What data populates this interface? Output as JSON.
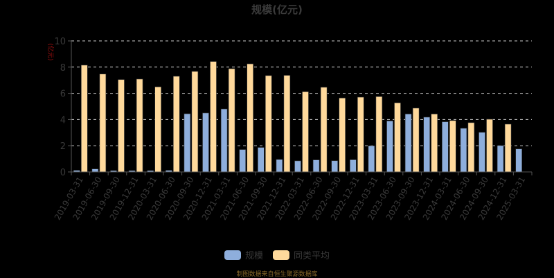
{
  "title": "规模(亿元)",
  "y_unit_label": "(亿元)",
  "source_note": "制图数据来自恒生聚源数据库",
  "colors": {
    "background": "#000000",
    "series_scale": "#8eaedc",
    "series_avg": "#ffd99b",
    "grid": "#cccccc",
    "axis": "#555555",
    "tick_text": "#3a3a3a",
    "unit_label": "#a01010"
  },
  "legend": [
    {
      "name": "规模",
      "color": "#8eaedc"
    },
    {
      "name": "同类平均",
      "color": "#ffd99b"
    }
  ],
  "chart_data": {
    "type": "bar",
    "title": "规模(亿元)",
    "xlabel": "",
    "ylabel": "(亿元)",
    "ylim": [
      0,
      10
    ],
    "yticks": [
      0,
      2,
      4,
      6,
      8,
      10
    ],
    "grid": true,
    "legend_position": "bottom",
    "categories": [
      "2019-03-31",
      "2019-06-30",
      "2019-09-30",
      "2019-12-31",
      "2020-03-31",
      "2020-06-30",
      "2020-09-30",
      "2020-12-31",
      "2021-03-31",
      "2021-06-30",
      "2021-09-30",
      "2021-12-31",
      "2022-03-31",
      "2022-06-30",
      "2022-09-30",
      "2022-12-31",
      "2023-03-31",
      "2023-06-30",
      "2023-09-30",
      "2023-12-31",
      "2024-03-31",
      "2024-06-30",
      "2024-09-30",
      "2024-12-31",
      "2025-03-31"
    ],
    "series": [
      {
        "name": "规模",
        "values": [
          0.12,
          0.23,
          0.1,
          0.1,
          0.1,
          0.12,
          4.44,
          4.5,
          4.81,
          1.71,
          1.87,
          0.95,
          0.85,
          0.92,
          0.86,
          0.93,
          1.99,
          3.89,
          4.42,
          4.18,
          3.83,
          3.33,
          3.02,
          2.01,
          1.76
        ]
      },
      {
        "name": "同类平均",
        "values": [
          8.15,
          7.47,
          7.05,
          7.09,
          6.49,
          7.3,
          7.67,
          8.43,
          7.88,
          8.25,
          7.35,
          7.37,
          6.12,
          6.46,
          5.64,
          5.71,
          5.75,
          5.27,
          4.87,
          4.42,
          3.92,
          3.76,
          4.02,
          3.65,
          null
        ]
      }
    ]
  }
}
